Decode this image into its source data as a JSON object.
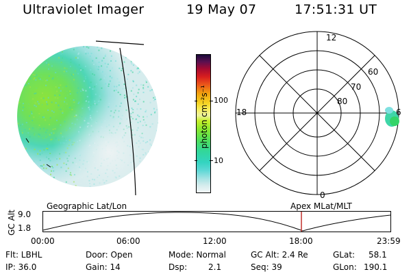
{
  "header": {
    "title": "Ultraviolet Imager",
    "date": "19 May 07",
    "time": "17:51:31 UT"
  },
  "colorbar": {
    "unit_label": "photon cm⁻²s⁻¹",
    "ticks": [
      "100",
      "10"
    ]
  },
  "polar_plot": {
    "labels": [
      "12",
      "18",
      "6",
      "0",
      "60",
      "70",
      "80"
    ]
  },
  "orbit": {
    "left_label": "Geographic Lat/Lon",
    "right_label": "Apex MLat/MLT",
    "axis_label": "GC Alt",
    "y_ticks": [
      "9.0",
      "1.8"
    ],
    "x_ticks": [
      "00:00",
      "06:00",
      "12:00",
      "18:00",
      "23:59"
    ]
  },
  "status": {
    "filter": "Flt: LBHL",
    "ip": "IP: 36.0",
    "door": "Door: Open",
    "gain": "Gain: 14",
    "mode": "Mode: Normal",
    "dsp_label": "Dsp:",
    "dsp_value": "2.1",
    "gc_alt": "GC Alt: 2.4 Re",
    "seq": "Seq: 39",
    "glat_label": "GLat:",
    "glat_value": "58.1",
    "glon_label": "GLon:",
    "glon_value": "190.1"
  },
  "colors": {
    "aurora_green": "#7fe23a",
    "aurora_cyan": "#4fd9d2",
    "marker_red": "#c0302a"
  }
}
